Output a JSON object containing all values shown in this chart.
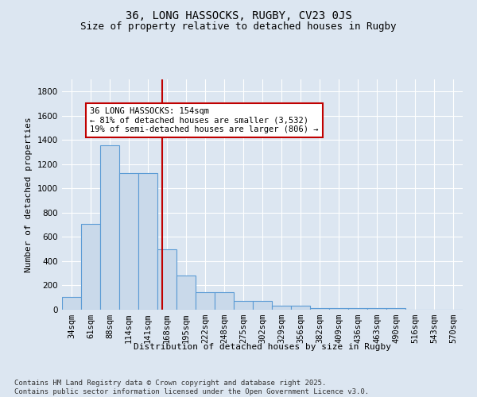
{
  "title": "36, LONG HASSOCKS, RUGBY, CV23 0JS",
  "subtitle": "Size of property relative to detached houses in Rugby",
  "xlabel": "Distribution of detached houses by size in Rugby",
  "ylabel": "Number of detached properties",
  "bin_labels": [
    "34sqm",
    "61sqm",
    "88sqm",
    "114sqm",
    "141sqm",
    "168sqm",
    "195sqm",
    "222sqm",
    "248sqm",
    "275sqm",
    "302sqm",
    "329sqm",
    "356sqm",
    "382sqm",
    "409sqm",
    "436sqm",
    "463sqm",
    "490sqm",
    "516sqm",
    "543sqm",
    "570sqm"
  ],
  "bar_heights": [
    105,
    705,
    1355,
    1130,
    1130,
    500,
    280,
    145,
    145,
    75,
    75,
    30,
    30,
    15,
    15,
    15,
    15,
    15,
    0,
    0,
    0
  ],
  "bar_color": "#c9d9ea",
  "bar_edge_color": "#5b9bd5",
  "bar_width": 1.0,
  "ylim": [
    0,
    1900
  ],
  "yticks": [
    0,
    200,
    400,
    600,
    800,
    1000,
    1200,
    1400,
    1600,
    1800
  ],
  "vline_x": 4.75,
  "vline_color": "#c00000",
  "annotation_text": "36 LONG HASSOCKS: 154sqm\n← 81% of detached houses are smaller (3,532)\n19% of semi-detached houses are larger (806) →",
  "annotation_box_color": "#ffffff",
  "annotation_box_edge_color": "#c00000",
  "bg_color": "#dce6f1",
  "plot_bg_color": "#dce6f1",
  "footer_line1": "Contains HM Land Registry data © Crown copyright and database right 2025.",
  "footer_line2": "Contains public sector information licensed under the Open Government Licence v3.0.",
  "title_fontsize": 10,
  "subtitle_fontsize": 9,
  "axis_label_fontsize": 8,
  "tick_fontsize": 7.5,
  "annotation_fontsize": 7.5,
  "footer_fontsize": 6.5
}
